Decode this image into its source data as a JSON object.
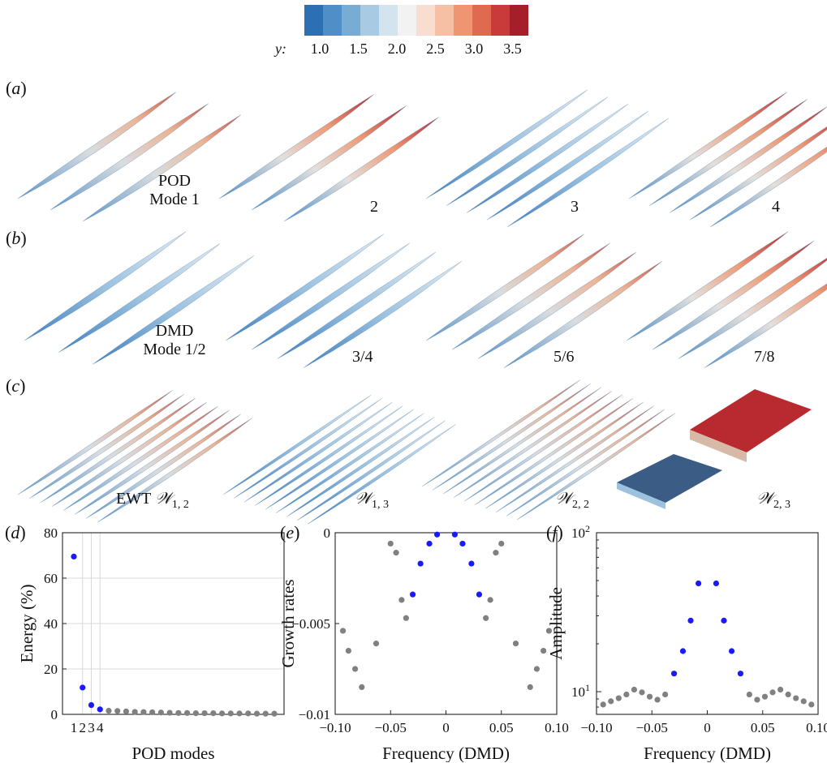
{
  "colorbar": {
    "variable": "y",
    "ticks": [
      "1.0",
      "1.5",
      "2.0",
      "2.5",
      "3.0",
      "3.5"
    ],
    "colors": [
      "#2d6fb3",
      "#4f8ec6",
      "#79acd4",
      "#a8cbe3",
      "#d4e4ef",
      "#f2f2f2",
      "#f8ddd0",
      "#f6c0a4",
      "#ef9572",
      "#e06a4f",
      "#c83b3a",
      "#a51f2b"
    ]
  },
  "rows": [
    {
      "label": "a",
      "captions": [
        [
          "POD",
          "Mode 1"
        ],
        [
          "2"
        ],
        [
          "3"
        ],
        [
          "4"
        ]
      ]
    },
    {
      "label": "b",
      "captions": [
        [
          "DMD",
          "Mode 1/2"
        ],
        [
          "3/4"
        ],
        [
          "5/6"
        ],
        [
          "7/8"
        ]
      ]
    },
    {
      "label": "c",
      "captions": [
        {
          "prefix": "EWT ",
          "symbol": "𝒲",
          "sub": "1, 2"
        },
        {
          "prefix": "",
          "symbol": "𝒲",
          "sub": "1, 3"
        },
        {
          "prefix": "",
          "symbol": "𝒲",
          "sub": "2, 2"
        },
        {
          "prefix": "",
          "symbol": "𝒲",
          "sub": "2, 3"
        }
      ]
    }
  ],
  "chart_data": [
    {
      "panel": "d",
      "type": "scatter",
      "xlabel": "POD modes",
      "ylabel": "Energy (%)",
      "ylim": [
        0,
        80
      ],
      "yticks": [
        0,
        20,
        40,
        60,
        80
      ],
      "xticks": [
        1,
        2,
        3,
        4
      ],
      "grid": "horizontal lines at y ticks and vertical lines at modes 2, 3, 4",
      "series": [
        {
          "color": "#1a1aff",
          "x": [
            1,
            2,
            3,
            4
          ],
          "y": [
            69.5,
            11.8,
            4.1,
            2.2
          ]
        },
        {
          "color": "#808080",
          "x": [
            5,
            6,
            7,
            8,
            9,
            10,
            11,
            12,
            13,
            14,
            15,
            16,
            17,
            18,
            19,
            20,
            21,
            22,
            23,
            24
          ],
          "y": [
            1.6,
            1.5,
            1.3,
            1.1,
            1.0,
            0.9,
            0.8,
            0.7,
            0.6,
            0.6,
            0.5,
            0.5,
            0.5,
            0.4,
            0.4,
            0.4,
            0.4,
            0.3,
            0.3,
            0.3
          ]
        }
      ]
    },
    {
      "panel": "e",
      "type": "scatter",
      "xlabel": "Frequency (DMD)",
      "ylabel": "Growth rates",
      "xlim": [
        -0.1,
        0.1
      ],
      "ylim": [
        -0.01,
        0
      ],
      "xticks": [
        "−0.10",
        "−0.05",
        "0",
        "0.05",
        "0.10"
      ],
      "yticks": [
        "0",
        "−0.005",
        "−0.01"
      ],
      "series": [
        {
          "color": "#1a1aff",
          "x": [
            -0.008,
            0.008,
            -0.015,
            0.015,
            -0.023,
            0.023,
            -0.03,
            0.03
          ],
          "y": [
            -0.0001,
            -0.0001,
            -0.0006,
            -0.0006,
            -0.0017,
            -0.0017,
            -0.0034,
            -0.0034
          ]
        },
        {
          "color": "#808080",
          "x": [
            -0.045,
            0.045,
            -0.05,
            0.05,
            -0.04,
            0.04,
            -0.036,
            0.036,
            -0.063,
            0.063,
            -0.093,
            0.093,
            -0.088,
            0.088,
            -0.082,
            0.082,
            -0.076,
            0.076
          ],
          "y": [
            -0.0011,
            -0.0011,
            -0.0006,
            -0.0006,
            -0.0037,
            -0.0037,
            -0.0047,
            -0.0047,
            -0.0061,
            -0.0061,
            -0.0054,
            -0.0054,
            -0.0065,
            -0.0065,
            -0.0075,
            -0.0075,
            -0.0085,
            -0.0085
          ]
        }
      ]
    },
    {
      "panel": "f",
      "type": "scatter",
      "xlabel": "Frequency (DMD)",
      "ylabel": "Amplitude",
      "yscale": "log",
      "xlim": [
        -0.1,
        0.1
      ],
      "ylim": [
        7.2,
        100
      ],
      "xticks": [
        "−0.10",
        "−0.05",
        "0",
        "0.05",
        "0.10"
      ],
      "yticks": [
        {
          "value": 10,
          "base": "10",
          "exp": "1"
        },
        {
          "value": 100,
          "base": "10",
          "exp": "2"
        }
      ],
      "series": [
        {
          "color": "#1a1aff",
          "x": [
            -0.008,
            0.008,
            -0.015,
            0.015,
            -0.022,
            0.022,
            -0.03,
            0.03
          ],
          "y": [
            48,
            48,
            28,
            28,
            18,
            18,
            13,
            13
          ]
        },
        {
          "color": "#808080",
          "x": [
            -0.094,
            -0.087,
            -0.08,
            -0.073,
            -0.066,
            -0.059,
            -0.052,
            -0.045,
            -0.038,
            0.038,
            0.045,
            0.052,
            0.059,
            0.066,
            0.073,
            0.08,
            0.087,
            0.094
          ],
          "y": [
            8.3,
            8.7,
            9.1,
            9.6,
            10.3,
            9.9,
            9.3,
            8.9,
            9.6,
            9.6,
            8.9,
            9.3,
            9.9,
            10.3,
            9.6,
            9.1,
            8.7,
            8.3
          ]
        }
      ]
    }
  ]
}
